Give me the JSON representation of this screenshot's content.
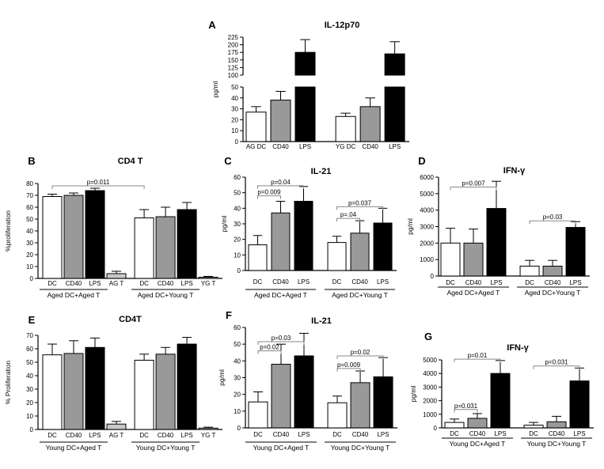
{
  "chart_data": [
    {
      "letter": "A",
      "title": "IL-12p70",
      "type": "bar",
      "ylabel": "pg/ml",
      "broken_axis": true,
      "lower": {
        "ylim": [
          0,
          50
        ],
        "ticks": [
          0,
          10,
          20,
          30,
          40,
          50
        ]
      },
      "upper": {
        "ylim": [
          100,
          225
        ],
        "ticks": [
          100,
          125,
          150,
          175,
          200,
          225
        ]
      },
      "categories": [
        "AG DC",
        "CD40",
        "LPS",
        "YG DC",
        "CD40",
        "LPS"
      ],
      "values": [
        27,
        38,
        175,
        23,
        32,
        170
      ],
      "errors": [
        5,
        8,
        42,
        3,
        8,
        40
      ],
      "fills": [
        "#ffffff",
        "#999999",
        "#000000",
        "#ffffff",
        "#999999",
        "#000000"
      ],
      "groups": [],
      "significance": []
    },
    {
      "letter": "B",
      "title": "CD4 T",
      "type": "bar",
      "ylabel": "%proliferation",
      "ylim": [
        0,
        80
      ],
      "ticks": [
        0,
        10,
        20,
        30,
        40,
        50,
        60,
        70,
        80
      ],
      "categories": [
        "DC",
        "CD40",
        "LPS",
        "AG T",
        "DC",
        "CD40",
        "LPS",
        "YG T"
      ],
      "values": [
        69,
        70,
        74,
        4,
        51,
        52,
        58,
        1
      ],
      "errors": [
        2,
        2,
        2,
        2,
        7,
        8,
        6,
        0.7
      ],
      "fills": [
        "#ffffff",
        "#999999",
        "#000000",
        "#c8c8c8",
        "#ffffff",
        "#999999",
        "#000000",
        "#c8c8c8"
      ],
      "groups": [
        {
          "label": "Aged DC+Aged T",
          "from": 0,
          "to": 2
        },
        {
          "label": "Aged DC+Young T",
          "from": 4,
          "to": 6
        }
      ],
      "significance": [
        {
          "label": "p=0.011",
          "from": 0,
          "to": 4,
          "y": 78
        }
      ]
    },
    {
      "letter": "C",
      "title": "IL-21",
      "type": "bar",
      "ylabel": "pg/ml",
      "ylim": [
        0,
        60
      ],
      "ticks": [
        0,
        10,
        20,
        30,
        40,
        50,
        60
      ],
      "categories": [
        "DC",
        "CD40",
        "LPS",
        "DC",
        "CD40",
        "LPS"
      ],
      "values": [
        16.5,
        37,
        44.5,
        18,
        24,
        30.5
      ],
      "errors": [
        6,
        7.5,
        9.5,
        4,
        8,
        9.5
      ],
      "fills": [
        "#ffffff",
        "#999999",
        "#000000",
        "#ffffff",
        "#999999",
        "#000000"
      ],
      "groups": [
        {
          "label": "Aged DC+Aged T",
          "from": 0,
          "to": 2
        },
        {
          "label": "Aged DC+Young T",
          "from": 3,
          "to": 5
        }
      ],
      "significance": [
        {
          "label": "p=0.009",
          "from": 0,
          "to": 1,
          "y": 48
        },
        {
          "label": "p=0.04",
          "from": 0,
          "to": 2,
          "y": 54.5
        },
        {
          "label": "p=.04",
          "from": 3,
          "to": 4,
          "y": 33.5
        },
        {
          "label": "p=0.037",
          "from": 3,
          "to": 5,
          "y": 41
        }
      ]
    },
    {
      "letter": "D",
      "title": "IFN-γ",
      "type": "bar",
      "ylabel": "pg/ml",
      "ylim": [
        0,
        6000
      ],
      "ticks": [
        0,
        1000,
        2000,
        3000,
        4000,
        5000,
        6000
      ],
      "categories": [
        "DC",
        "CD40",
        "LPS",
        "DC",
        "CD40",
        "LPS"
      ],
      "values": [
        2000,
        2000,
        4100,
        600,
        600,
        2950
      ],
      "errors": [
        900,
        850,
        1650,
        350,
        350,
        350
      ],
      "fills": [
        "#ffffff",
        "#999999",
        "#000000",
        "#ffffff",
        "#999999",
        "#000000"
      ],
      "groups": [
        {
          "label": "Aged DC+Aged T",
          "from": 0,
          "to": 2
        },
        {
          "label": "Aged DC+Young T",
          "from": 3,
          "to": 5
        }
      ],
      "significance": [
        {
          "label": "p=0.007",
          "from": 0,
          "to": 2,
          "y": 5400
        },
        {
          "label": "p=0.03",
          "from": 3,
          "to": 5,
          "y": 3350
        }
      ]
    },
    {
      "letter": "E",
      "title": "CD4T",
      "type": "bar",
      "ylabel": "% Proliferation",
      "ylim": [
        0,
        70
      ],
      "ticks": [
        0,
        10,
        20,
        30,
        40,
        50,
        60,
        70
      ],
      "categories": [
        "DC",
        "CD40",
        "LPS",
        "AG T",
        "DC",
        "CD40",
        "LPS",
        "YG T"
      ],
      "values": [
        55.5,
        56.5,
        61,
        4,
        51.5,
        56,
        63.5,
        1
      ],
      "errors": [
        8,
        9.5,
        7,
        2,
        4.5,
        5,
        5,
        0.7
      ],
      "fills": [
        "#ffffff",
        "#999999",
        "#000000",
        "#c8c8c8",
        "#ffffff",
        "#999999",
        "#000000",
        "#c8c8c8"
      ],
      "groups": [
        {
          "label": "Young DC+Aged T",
          "from": 0,
          "to": 2
        },
        {
          "label": "Young DC+Young T",
          "from": 4,
          "to": 6
        }
      ],
      "significance": []
    },
    {
      "letter": "F",
      "title": "IL-21",
      "type": "bar",
      "ylabel": "pg/ml",
      "ylim": [
        0,
        60
      ],
      "ticks": [
        0,
        10,
        20,
        30,
        40,
        50,
        60
      ],
      "categories": [
        "DC",
        "CD40",
        "LPS",
        "DC",
        "CD40",
        "LPS"
      ],
      "values": [
        15.5,
        38,
        43,
        15,
        27,
        30.5
      ],
      "errors": [
        6,
        12,
        13.5,
        4,
        7,
        11.5
      ],
      "fills": [
        "#ffffff",
        "#999999",
        "#000000",
        "#ffffff",
        "#999999",
        "#000000"
      ],
      "groups": [
        {
          "label": "Young DC+Aged T",
          "from": 0,
          "to": 2
        },
        {
          "label": "Young DC+Young T",
          "from": 3,
          "to": 5
        }
      ],
      "significance": [
        {
          "label": "p=0.02",
          "from": 0,
          "to": 1,
          "y": 46
        },
        {
          "label": "p=0.03",
          "from": 0,
          "to": 2,
          "y": 51.5
        },
        {
          "label": "p=0.009",
          "from": 3,
          "to": 4,
          "y": 35.5
        },
        {
          "label": "p=0.02",
          "from": 3,
          "to": 5,
          "y": 43
        }
      ]
    },
    {
      "letter": "G",
      "title": "IFN-γ",
      "type": "bar",
      "ylabel": "pg/ml",
      "ylim": [
        0,
        5000
      ],
      "ticks": [
        0,
        1000,
        2000,
        3000,
        4000,
        5000
      ],
      "categories": [
        "DC",
        "CD40",
        "LPS",
        "DC",
        "CD40",
        "LPS"
      ],
      "values": [
        400,
        700,
        4000,
        200,
        450,
        3450
      ],
      "errors": [
        250,
        350,
        950,
        200,
        400,
        950
      ],
      "fills": [
        "#ffffff",
        "#999999",
        "#000000",
        "#ffffff",
        "#999999",
        "#000000"
      ],
      "groups": [
        {
          "label": "Young DC+Aged T",
          "from": 0,
          "to": 2
        },
        {
          "label": "Young DC+Young T",
          "from": 3,
          "to": 5
        }
      ],
      "significance": [
        {
          "label": "p=0.031",
          "from": 0,
          "to": 1,
          "y": 1350
        },
        {
          "label": "p=0.01",
          "from": 0,
          "to": 2,
          "y": 5050
        },
        {
          "label": "p=0.031",
          "from": 3,
          "to": 5,
          "y": 4550
        }
      ]
    }
  ]
}
